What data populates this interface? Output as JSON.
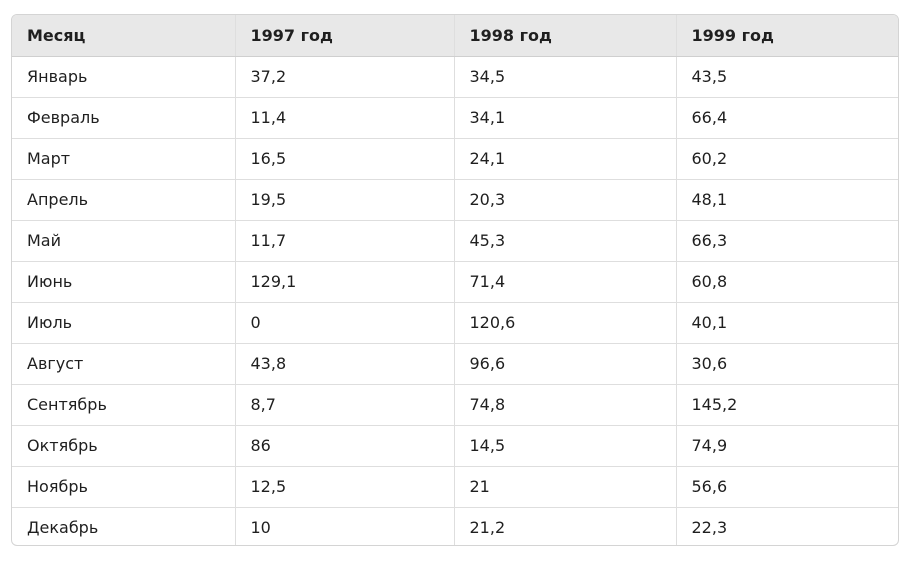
{
  "table": {
    "headers": [
      "Месяц",
      "1997 год",
      "1998 год",
      "1999 год"
    ],
    "rows": [
      [
        "Январь",
        "37,2",
        "34,5",
        "43,5"
      ],
      [
        "Февраль",
        "11,4",
        "34,1",
        "66,4"
      ],
      [
        "Март",
        "16,5",
        "24,1",
        "60,2"
      ],
      [
        "Апрель",
        "19,5",
        "20,3",
        "48,1"
      ],
      [
        "Май",
        "11,7",
        "45,3",
        "66,3"
      ],
      [
        "Июнь",
        "129,1",
        "71,4",
        "60,8"
      ],
      [
        "Июль",
        "0",
        "120,6",
        "40,1"
      ],
      [
        "Август",
        "43,8",
        "96,6",
        "30,6"
      ],
      [
        "Сентябрь",
        "8,7",
        "74,8",
        "145,2"
      ],
      [
        "Октябрь",
        "86",
        "14,5",
        "74,9"
      ],
      [
        "Ноябрь",
        "12,5",
        "21",
        "56,6"
      ],
      [
        "Декабрь",
        "10",
        "21,2",
        "22,3"
      ]
    ]
  }
}
